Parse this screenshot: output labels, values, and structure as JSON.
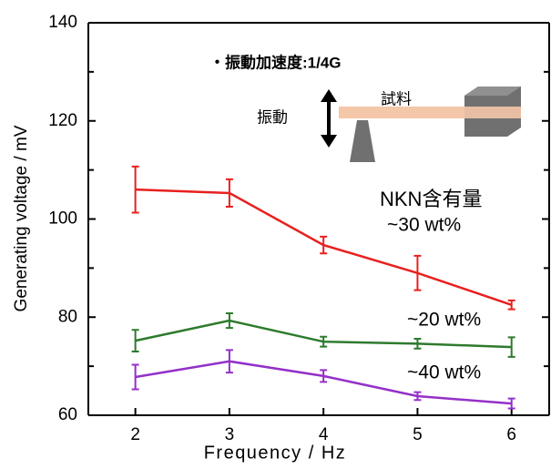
{
  "chart_data": {
    "type": "line",
    "xlabel": "Frequency / Hz",
    "ylabel": "Generating voltage / mV",
    "legend_title": "NKN含有量",
    "annotations": [
      "・振動加速度:1/4G",
      "振動",
      "試料"
    ],
    "x": [
      2,
      3,
      4,
      5,
      6
    ],
    "xlim": [
      1.5,
      6.4
    ],
    "xticks": [
      2,
      3,
      4,
      5,
      6
    ],
    "ylim": [
      60,
      140
    ],
    "yticks": [
      60,
      80,
      100,
      120,
      140
    ],
    "series": [
      {
        "name": "~30 wt%",
        "color": "#e8201f",
        "values": [
          106,
          105.3,
          94.7,
          89,
          82.5
        ],
        "errors": [
          4.7,
          2.8,
          1.7,
          3.5,
          0.9
        ]
      },
      {
        "name": "~20 wt%",
        "color": "#2d7a2d",
        "values": [
          75.2,
          79.3,
          75,
          74.6,
          73.9
        ],
        "errors": [
          2.2,
          1.5,
          1,
          1,
          2
        ]
      },
      {
        "name": "~40 wt%",
        "color": "#9430c8",
        "values": [
          67.8,
          71,
          68,
          63.9,
          62.4
        ],
        "errors": [
          2.5,
          2.3,
          1.2,
          0.8,
          1
        ]
      }
    ]
  }
}
